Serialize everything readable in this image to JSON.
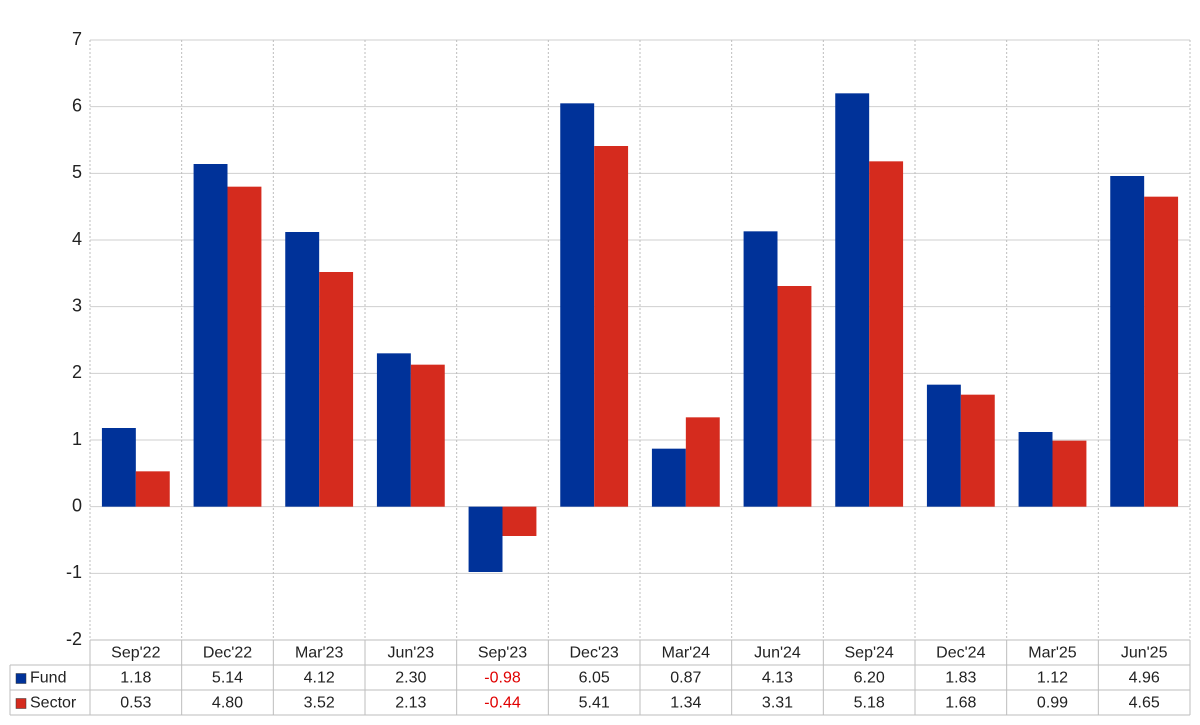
{
  "chart_data": {
    "type": "bar",
    "categories": [
      "Sep'22",
      "Dec'22",
      "Mar'23",
      "Jun'23",
      "Sep'23",
      "Dec'23",
      "Mar'24",
      "Jun'24",
      "Sep'24",
      "Dec'24",
      "Mar'25",
      "Jun'25"
    ],
    "series": [
      {
        "name": "Fund",
        "color": "#003299",
        "values": [
          1.18,
          5.14,
          4.12,
          2.3,
          -0.98,
          6.05,
          0.87,
          4.13,
          6.2,
          1.83,
          1.12,
          4.96
        ],
        "value_labels": [
          "1.18",
          "5.14",
          "4.12",
          "2.30",
          "-0.98",
          "6.05",
          "0.87",
          "4.13",
          "6.20",
          "1.83",
          "1.12",
          "4.96"
        ]
      },
      {
        "name": "Sector",
        "color": "#d52b1e",
        "values": [
          0.53,
          4.8,
          3.52,
          2.13,
          -0.44,
          5.41,
          1.34,
          3.31,
          5.18,
          1.68,
          0.99,
          4.65
        ],
        "value_labels": [
          "0.53",
          "4.80",
          "3.52",
          "2.13",
          "-0.44",
          "5.41",
          "1.34",
          "3.31",
          "5.18",
          "1.68",
          "0.99",
          "4.65"
        ]
      }
    ],
    "ylim": [
      -2,
      7
    ],
    "yticks": [
      -2,
      -1,
      0,
      1,
      2,
      3,
      4,
      5,
      6,
      7
    ],
    "grid": true,
    "negative_label_color": "#e00000"
  }
}
